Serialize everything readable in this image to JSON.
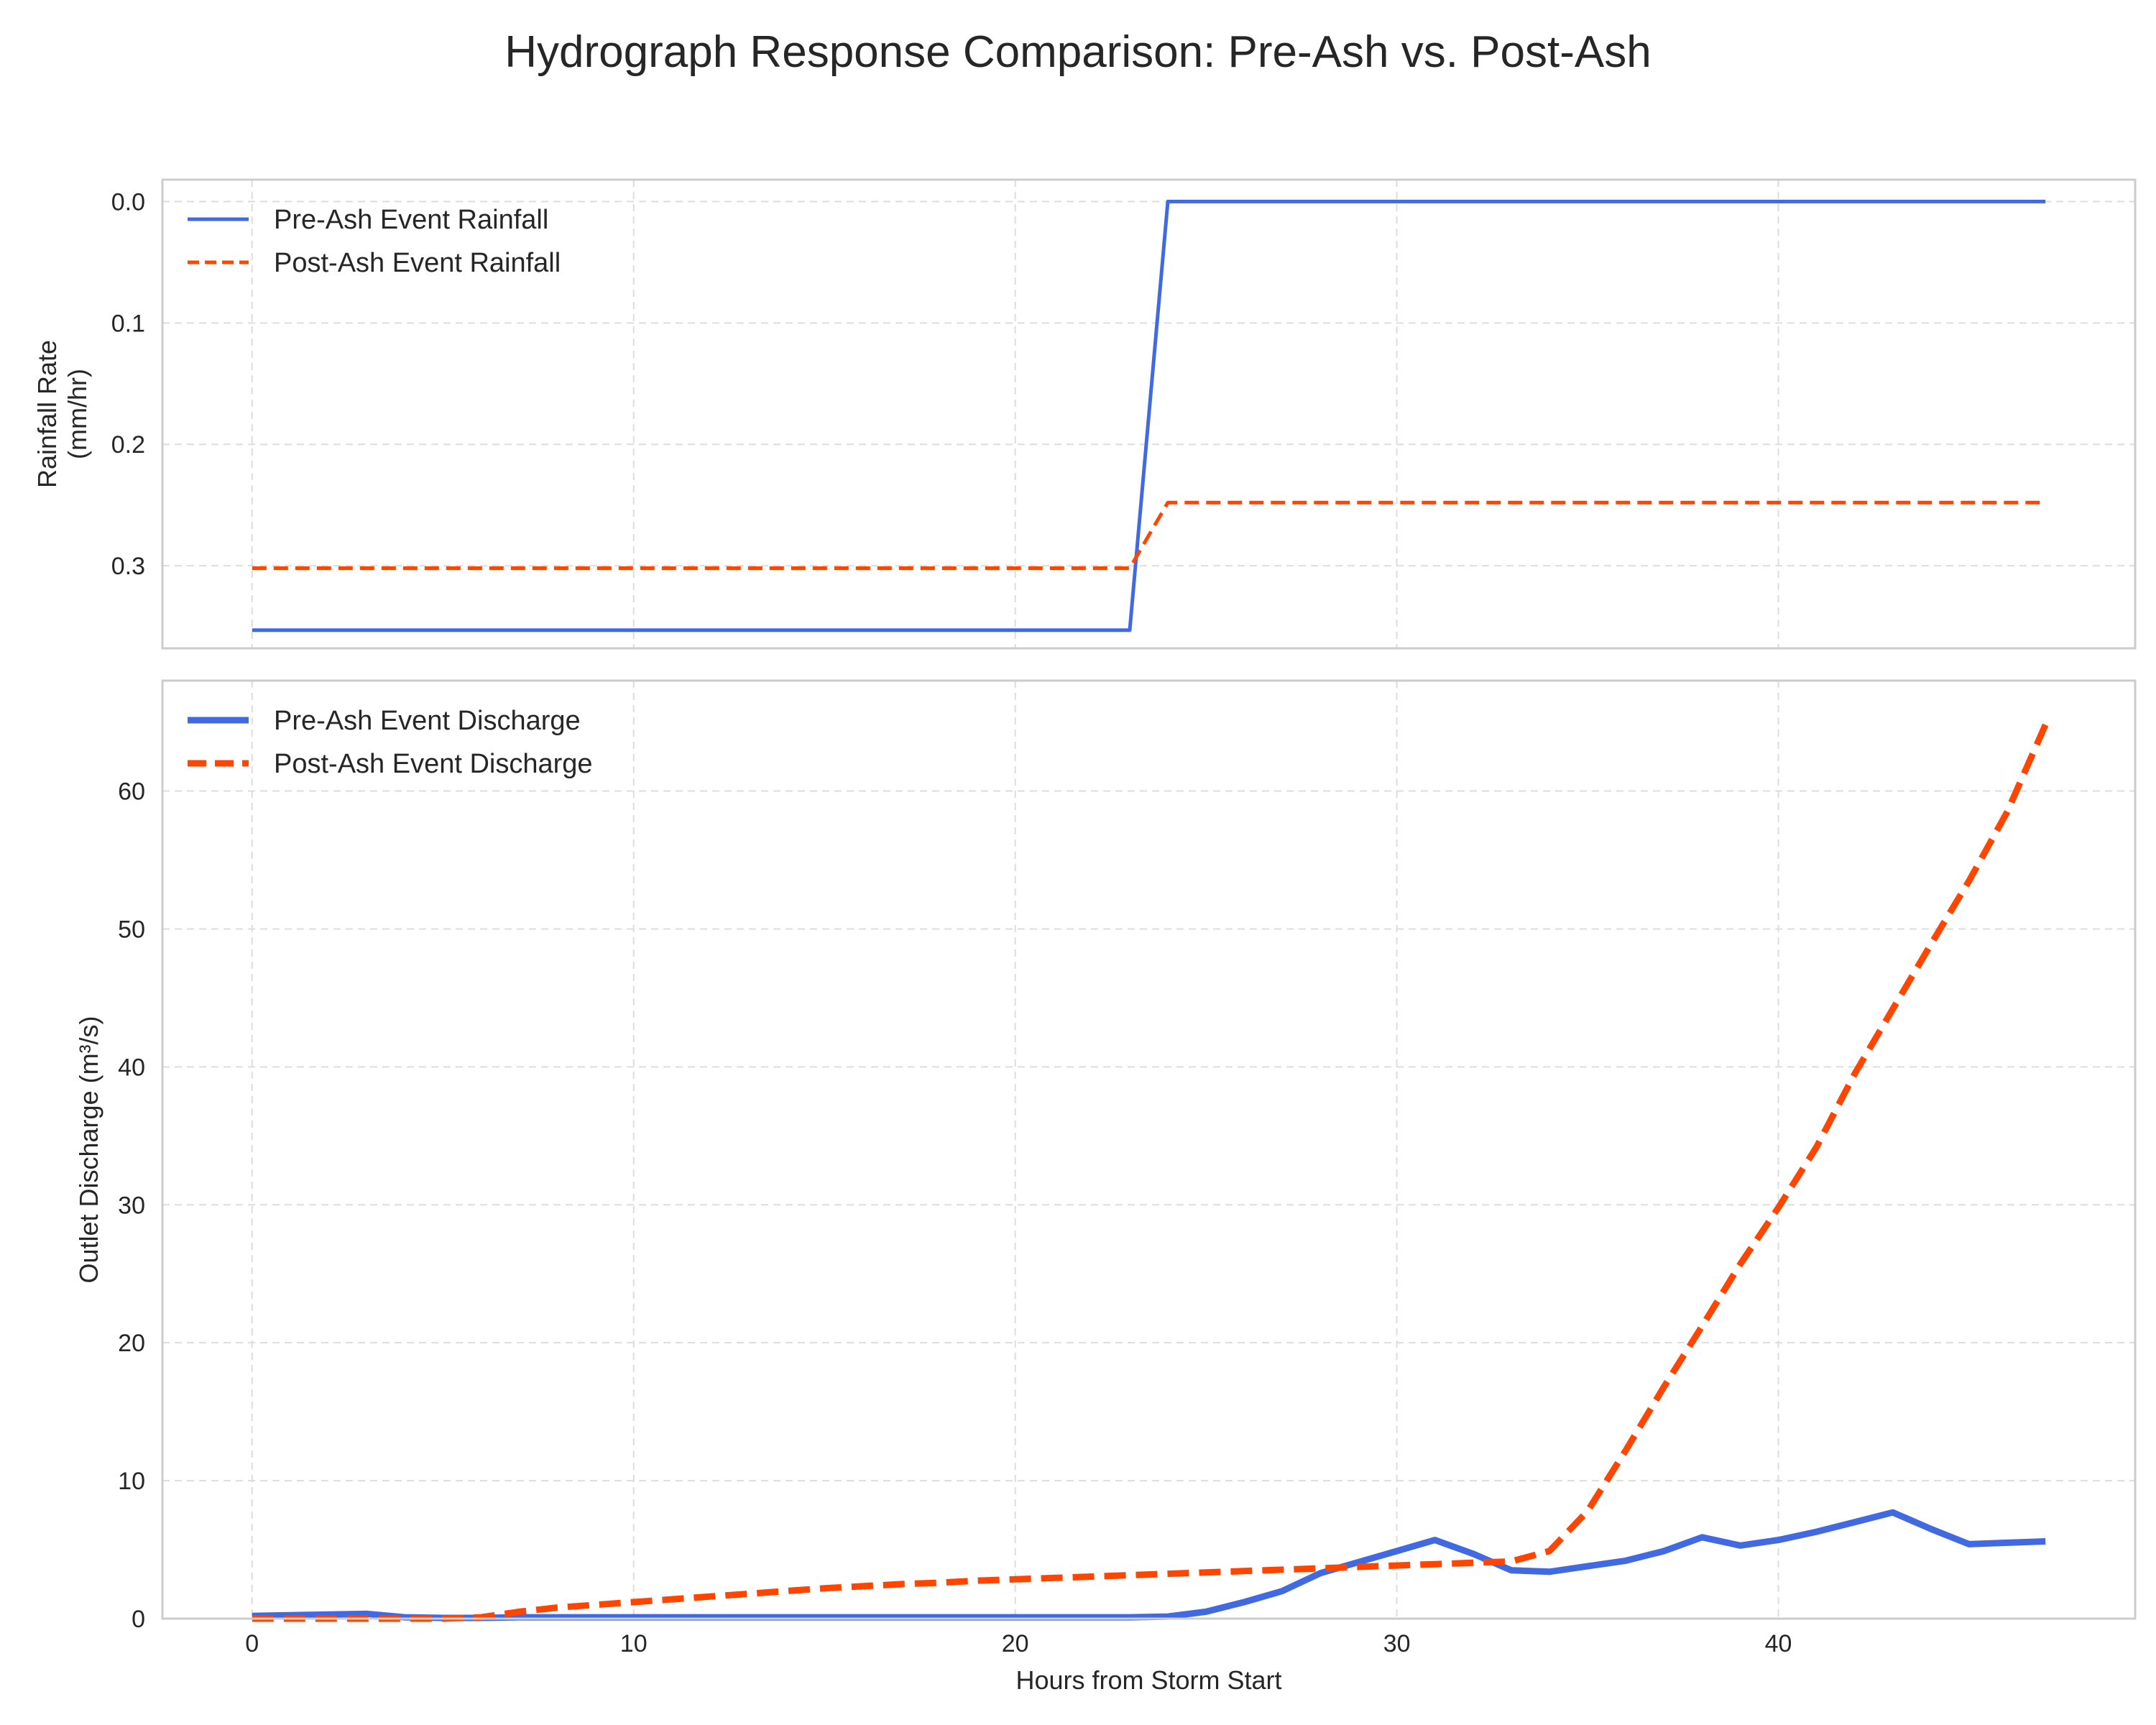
{
  "title": "Hydrograph Response Comparison: Pre-Ash vs. Post-Ash",
  "colors": {
    "pre": "#4169e1",
    "post": "#ff4500",
    "grid": "#dddddd",
    "frame": "#cccccc",
    "text": "#262626"
  },
  "chart_data": [
    {
      "type": "line",
      "ylabel_lines": [
        "Rainfall Rate",
        "(mm/hr)"
      ],
      "xlabel": "",
      "xlim": [
        -2.35,
        49.35
      ],
      "ylim": [
        0.368,
        -0.018
      ],
      "y_inverted": true,
      "yticks": [
        0.0,
        0.1,
        0.2,
        0.3
      ],
      "ytick_labels": [
        "0.0",
        "0.1",
        "0.2",
        "0.3"
      ],
      "xticks": [
        0,
        10,
        20,
        30,
        40
      ],
      "grid": true,
      "legend_position": "upper-left",
      "x": [
        0,
        1,
        2,
        3,
        4,
        5,
        6,
        7,
        8,
        9,
        10,
        11,
        12,
        13,
        14,
        15,
        16,
        17,
        18,
        19,
        20,
        21,
        22,
        23,
        24,
        25,
        26,
        27,
        28,
        29,
        30,
        31,
        32,
        33,
        34,
        35,
        36,
        37,
        38,
        39,
        40,
        41,
        42,
        43,
        44,
        45,
        46,
        47
      ],
      "series": [
        {
          "name": "Pre-Ash Event Rainfall",
          "style": "solid",
          "color_key": "pre",
          "values": [
            0.353,
            0.353,
            0.353,
            0.353,
            0.353,
            0.353,
            0.353,
            0.353,
            0.353,
            0.353,
            0.353,
            0.353,
            0.353,
            0.353,
            0.353,
            0.353,
            0.353,
            0.353,
            0.353,
            0.353,
            0.353,
            0.353,
            0.353,
            0.353,
            0,
            0,
            0,
            0,
            0,
            0,
            0,
            0,
            0,
            0,
            0,
            0,
            0,
            0,
            0,
            0,
            0,
            0,
            0,
            0,
            0,
            0,
            0,
            0
          ]
        },
        {
          "name": "Post-Ash Event Rainfall",
          "style": "dashed",
          "color_key": "post",
          "values": [
            0.302,
            0.302,
            0.302,
            0.302,
            0.302,
            0.302,
            0.302,
            0.302,
            0.302,
            0.302,
            0.302,
            0.302,
            0.302,
            0.302,
            0.302,
            0.302,
            0.302,
            0.302,
            0.302,
            0.302,
            0.302,
            0.302,
            0.302,
            0.302,
            0.248,
            0.248,
            0.248,
            0.248,
            0.248,
            0.248,
            0.248,
            0.248,
            0.248,
            0.248,
            0.248,
            0.248,
            0.248,
            0.248,
            0.248,
            0.248,
            0.248,
            0.248,
            0.248,
            0.248,
            0.248,
            0.248,
            0.248,
            0.248
          ]
        }
      ]
    },
    {
      "type": "line",
      "ylabel_lines": [
        "Outlet Discharge (m³/s)"
      ],
      "xlabel": "Hours from Storm Start",
      "xlim": [
        -2.35,
        49.35
      ],
      "ylim": [
        0,
        68
      ],
      "y_inverted": false,
      "yticks": [
        0,
        10,
        20,
        30,
        40,
        50,
        60
      ],
      "ytick_labels": [
        "0",
        "10",
        "20",
        "30",
        "40",
        "50",
        "60"
      ],
      "xticks": [
        0,
        10,
        20,
        30,
        40
      ],
      "xtick_labels": [
        "0",
        "10",
        "20",
        "30",
        "40"
      ],
      "grid": true,
      "legend_position": "upper-left",
      "x": [
        0,
        1,
        2,
        3,
        4,
        5,
        6,
        7,
        8,
        9,
        10,
        11,
        12,
        13,
        14,
        15,
        16,
        17,
        18,
        19,
        20,
        21,
        22,
        23,
        24,
        25,
        26,
        27,
        28,
        29,
        30,
        31,
        32,
        33,
        34,
        35,
        36,
        37,
        38,
        39,
        40,
        41,
        42,
        43,
        44,
        45,
        46,
        47
      ],
      "series": [
        {
          "name": "Pre-Ash Event Discharge",
          "style": "solid",
          "color_key": "pre",
          "values": [
            0.2,
            0.25,
            0.3,
            0.35,
            0.1,
            0.05,
            0.05,
            0.1,
            0.1,
            0.1,
            0.1,
            0.1,
            0.1,
            0.1,
            0.1,
            0.1,
            0.1,
            0.1,
            0.1,
            0.1,
            0.1,
            0.1,
            0.1,
            0.1,
            0.15,
            0.5,
            1.2,
            2.0,
            3.3,
            4.1,
            4.9,
            5.7,
            4.7,
            3.5,
            3.4,
            3.8,
            4.2,
            4.9,
            5.9,
            5.3,
            5.7,
            6.3,
            7.0,
            7.7,
            6.5,
            5.4,
            5.5,
            5.6
          ]
        },
        {
          "name": "Post-Ash Event Discharge",
          "style": "dashed",
          "color_key": "post",
          "values": [
            0,
            0,
            0,
            0,
            0,
            0,
            0.1,
            0.5,
            0.8,
            1.0,
            1.2,
            1.4,
            1.6,
            1.8,
            2.0,
            2.2,
            2.35,
            2.5,
            2.6,
            2.75,
            2.85,
            2.95,
            3.05,
            3.15,
            3.25,
            3.35,
            3.45,
            3.55,
            3.65,
            3.75,
            3.85,
            3.95,
            4.05,
            4.15,
            4.9,
            7.8,
            12.2,
            16.8,
            21.2,
            25.7,
            29.8,
            34.2,
            39.5,
            44.2,
            48.9,
            53.5,
            58.5,
            64.8
          ]
        }
      ]
    }
  ]
}
